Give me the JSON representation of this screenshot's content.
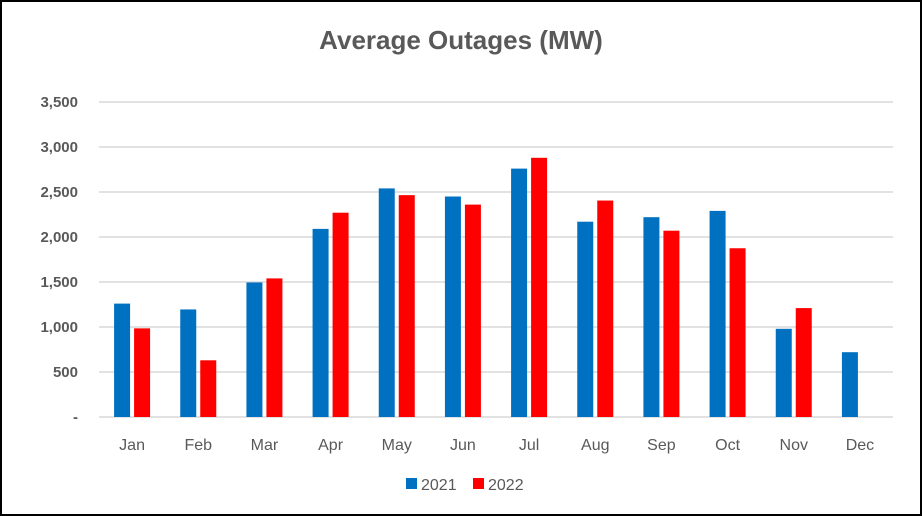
{
  "chart_data": {
    "type": "bar",
    "title": "Average Outages (MW)",
    "xlabel": "",
    "ylabel": "",
    "categories": [
      "Jan",
      "Feb",
      "Mar",
      "Apr",
      "May",
      "Jun",
      "Jul",
      "Aug",
      "Sep",
      "Oct",
      "Nov",
      "Dec"
    ],
    "series": [
      {
        "name": "2021",
        "color": "#0070c0",
        "values": [
          1260,
          1195,
          1495,
          2090,
          2540,
          2450,
          2760,
          2170,
          2220,
          2290,
          980,
          720
        ]
      },
      {
        "name": "2022",
        "color": "#ff0000",
        "values": [
          985,
          630,
          1540,
          2270,
          2465,
          2360,
          2880,
          2405,
          2070,
          1875,
          1210,
          null
        ]
      }
    ],
    "ylim": [
      0,
      3500
    ],
    "yticks": [
      0,
      500,
      1000,
      1500,
      2000,
      2500,
      3000,
      3500
    ],
    "ytick_labels": [
      "-",
      "500",
      "1,000",
      "1,500",
      "2,000",
      "2,500",
      "3,000",
      "3,500"
    ],
    "grid": true,
    "legend_position": "bottom"
  }
}
